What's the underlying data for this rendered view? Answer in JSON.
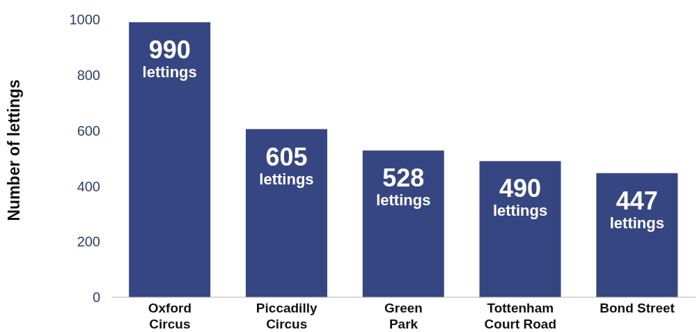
{
  "chart_data": {
    "type": "bar",
    "ylabel": "Number of lettings",
    "categories": [
      "Oxford\nCircus",
      "Piccadilly\nCircus",
      "Green\nPark",
      "Tottenham\nCourt Road",
      "Bond Street"
    ],
    "values": [
      990,
      605,
      528,
      490,
      447
    ],
    "value_labels": [
      "990 lettings",
      "605 lettings",
      "528 lettings",
      "490 lettings",
      "447 lettings"
    ],
    "color": "#364682",
    "ylim": [
      0,
      1000
    ],
    "yticks": [
      0,
      200,
      400,
      600,
      800,
      1000
    ],
    "grid": false
  }
}
